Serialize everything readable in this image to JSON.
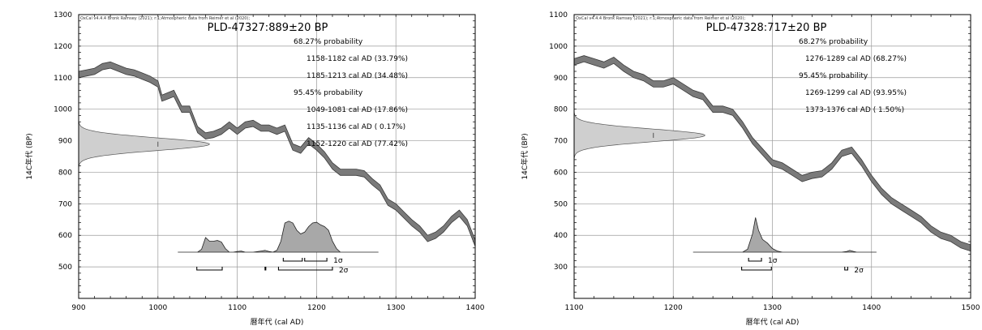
{
  "chart_data": [
    {
      "type": "line",
      "credit": "OxCal v4.4.4 Bronk Ramsey (2021); r:1;Atmospheric data from Reimer et al (2020);",
      "title": "PLD-47327:889±20 BP",
      "xlabel": "暦年代 (cal AD)",
      "ylabel": "14C年代 (BP)",
      "xlim": [
        900,
        1400
      ],
      "ylim": [
        400,
        1300
      ],
      "xticks": [
        "900",
        "1000",
        "1100",
        "1200",
        "1300",
        "1400"
      ],
      "yticks": [
        "500",
        "600",
        "700",
        "800",
        "900",
        "1000",
        "1100",
        "1200",
        "1300"
      ],
      "radiocarbon_date": {
        "mean": 889,
        "sd": 20
      },
      "calibration_curve": {
        "x": [
          900,
          910,
          920,
          930,
          940,
          950,
          960,
          970,
          980,
          990,
          1000,
          1005,
          1010,
          1020,
          1030,
          1040,
          1050,
          1060,
          1070,
          1080,
          1090,
          1100,
          1110,
          1120,
          1130,
          1140,
          1150,
          1160,
          1170,
          1180,
          1190,
          1200,
          1210,
          1220,
          1230,
          1240,
          1250,
          1260,
          1270,
          1280,
          1290,
          1300,
          1310,
          1320,
          1330,
          1340,
          1350,
          1360,
          1370,
          1380,
          1390,
          1400
        ],
        "y": [
          1110,
          1115,
          1120,
          1135,
          1140,
          1130,
          1120,
          1115,
          1105,
          1095,
          1080,
          1035,
          1040,
          1050,
          1000,
          1000,
          935,
          915,
          920,
          930,
          950,
          930,
          950,
          955,
          940,
          940,
          930,
          940,
          880,
          870,
          900,
          880,
          855,
          820,
          800,
          800,
          800,
          795,
          770,
          750,
          705,
          690,
          665,
          640,
          620,
          590,
          600,
          620,
          650,
          670,
          640,
          575
        ],
        "band_width": 20
      },
      "probability_labels": [
        "68.27% probability",
        "1158-1182 cal AD (33.79%)",
        "1185-1213 cal AD (34.48%)",
        "95.45% probability",
        "1049-1081 cal AD (17.86%)",
        "1135-1136 cal AD ( 0.17%)",
        "1152-1220 cal AD (77.42%)"
      ],
      "sigma_1": [
        [
          1158,
          1182
        ],
        [
          1185,
          1213
        ]
      ],
      "sigma_2": [
        [
          1049,
          1081
        ],
        [
          1135,
          1136
        ],
        [
          1152,
          1220
        ]
      ],
      "sigma_labels": [
        "1σ",
        "2σ"
      ],
      "calibrated_distribution": {
        "x": [
          1025,
          1050,
          1055,
          1060,
          1065,
          1070,
          1075,
          1080,
          1085,
          1090,
          1095,
          1100,
          1105,
          1110,
          1120,
          1130,
          1135,
          1140,
          1145,
          1150,
          1155,
          1160,
          1165,
          1170,
          1175,
          1180,
          1185,
          1190,
          1195,
          1200,
          1205,
          1210,
          1215,
          1220,
          1225,
          1230,
          1278
        ],
        "y": [
          0,
          0,
          0.08,
          0.4,
          0.3,
          0.3,
          0.32,
          0.28,
          0.1,
          0,
          0,
          0.02,
          0.03,
          0,
          0,
          0.03,
          0.05,
          0.02,
          0,
          0.05,
          0.3,
          0.8,
          0.85,
          0.8,
          0.6,
          0.5,
          0.55,
          0.7,
          0.8,
          0.82,
          0.75,
          0.7,
          0.6,
          0.3,
          0.1,
          0,
          0
        ]
      }
    },
    {
      "type": "line",
      "credit": "OxCal v4.4.4 Bronk Ramsey (2021); r:1;Atmospheric data from Reimer et al (2020);",
      "title": "PLD-47328:717±20 BP",
      "xlabel": "暦年代 (cal AD)",
      "ylabel": "14C年代 (BP)",
      "xlim": [
        1100,
        1500
      ],
      "ylim": [
        200,
        1100
      ],
      "xticks": [
        "1100",
        "1200",
        "1300",
        "1400",
        "1500"
      ],
      "yticks": [
        "300",
        "400",
        "500",
        "600",
        "700",
        "800",
        "900",
        "1000",
        "1100"
      ],
      "radiocarbon_date": {
        "mean": 717,
        "sd": 20
      },
      "calibration_curve": {
        "x": [
          1100,
          1110,
          1120,
          1130,
          1140,
          1150,
          1160,
          1170,
          1180,
          1190,
          1200,
          1210,
          1220,
          1230,
          1240,
          1250,
          1260,
          1270,
          1280,
          1290,
          1300,
          1310,
          1320,
          1330,
          1340,
          1350,
          1360,
          1370,
          1380,
          1390,
          1400,
          1410,
          1420,
          1430,
          1440,
          1450,
          1460,
          1470,
          1480,
          1490,
          1500
        ],
        "y": [
          950,
          960,
          950,
          940,
          955,
          930,
          910,
          900,
          880,
          880,
          890,
          870,
          850,
          840,
          800,
          800,
          790,
          750,
          700,
          665,
          630,
          620,
          600,
          580,
          590,
          595,
          620,
          660,
          670,
          630,
          580,
          540,
          510,
          490,
          470,
          450,
          420,
          400,
          390,
          370,
          360
        ],
        "band_width": 20
      },
      "probability_labels": [
        "68.27% probability",
        "1276-1289 cal AD (68.27%)",
        "95.45% probability",
        "1269-1299 cal AD (93.95%)",
        "1373-1376 cal AD ( 1.50%)"
      ],
      "sigma_1": [
        [
          1276,
          1289
        ]
      ],
      "sigma_2": [
        [
          1269,
          1299
        ],
        [
          1373,
          1376
        ]
      ],
      "sigma_labels": [
        "1σ",
        "2σ"
      ],
      "calibrated_distribution": {
        "x": [
          1220,
          1270,
          1275,
          1280,
          1283,
          1286,
          1290,
          1295,
          1300,
          1305,
          1310,
          1370,
          1375,
          1378,
          1382,
          1385,
          1405
        ],
        "y": [
          0,
          0,
          0.08,
          0.5,
          0.95,
          0.6,
          0.35,
          0.25,
          0.1,
          0.03,
          0,
          0,
          0.02,
          0.05,
          0.02,
          0,
          0
        ]
      }
    }
  ]
}
